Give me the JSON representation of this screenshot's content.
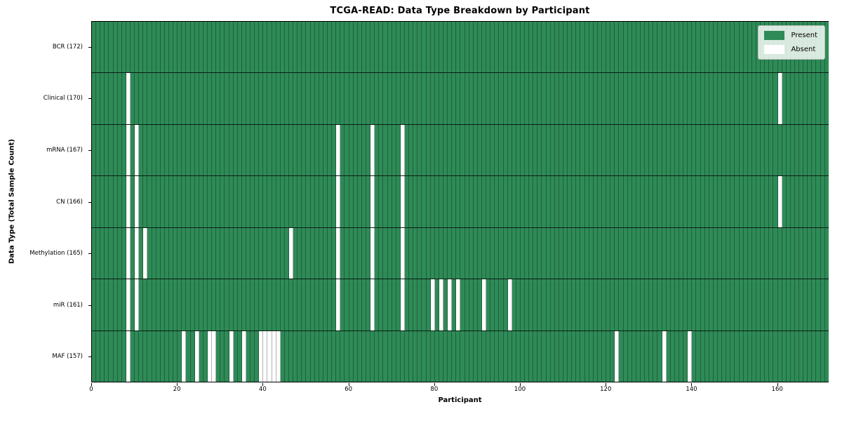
{
  "title": "TCGA-READ: Data Type Breakdown by Participant",
  "xlabel": "Participant",
  "ylabel": "Data Type (Total Sample Count)",
  "legend": {
    "present_label": "Present",
    "absent_label": "Absent"
  },
  "colors": {
    "present": "#2e8b57",
    "absent": "#ffffff",
    "cell_edge": "rgba(0,0,0,0.30)",
    "row_separator": "rgba(0,0,0,0.78)"
  },
  "chart_data": {
    "type": "heatmap",
    "title": "TCGA-READ: Data Type Breakdown by Participant",
    "xlabel": "Participant",
    "ylabel": "Data Type (Total Sample Count)",
    "legend": [
      "Present",
      "Absent"
    ],
    "legend_position": "upper right",
    "grid": "cell borders on",
    "n_participants": 172,
    "x_range": [
      0,
      172
    ],
    "x_ticks": [
      0,
      20,
      40,
      60,
      80,
      100,
      120,
      140,
      160
    ],
    "value_encoding": {
      "present": 1,
      "absent": 0
    },
    "rows": [
      {
        "name": "bcr",
        "label": "BCR (172)",
        "total": 172,
        "absent_participants": []
      },
      {
        "name": "clinical",
        "label": "Clinical (170)",
        "total": 170,
        "absent_participants": [
          8,
          160
        ]
      },
      {
        "name": "mrna",
        "label": "mRNA (167)",
        "total": 167,
        "absent_participants": [
          8,
          10,
          57,
          65,
          72
        ]
      },
      {
        "name": "cn",
        "label": "CN (166)",
        "total": 166,
        "absent_participants": [
          8,
          10,
          57,
          65,
          72,
          160
        ]
      },
      {
        "name": "methylation",
        "label": "Methylation (165)",
        "total": 165,
        "absent_participants": [
          8,
          10,
          12,
          46,
          57,
          65,
          72
        ]
      },
      {
        "name": "mir",
        "label": "miR (161)",
        "total": 161,
        "absent_participants": [
          8,
          10,
          57,
          65,
          72,
          79,
          81,
          83,
          85,
          91,
          97
        ]
      },
      {
        "name": "maf",
        "label": "MAF (157)",
        "total": 157,
        "absent_participants": [
          8,
          21,
          24,
          27,
          28,
          32,
          35,
          39,
          40,
          41,
          42,
          43,
          122,
          133,
          139
        ]
      }
    ]
  }
}
